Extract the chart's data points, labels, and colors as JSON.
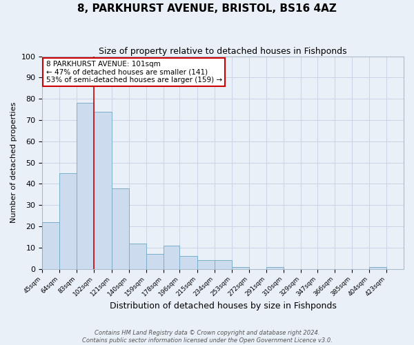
{
  "title": "8, PARKHURST AVENUE, BRISTOL, BS16 4AZ",
  "subtitle": "Size of property relative to detached houses in Fishponds",
  "xlabel": "Distribution of detached houses by size in Fishponds",
  "ylabel": "Number of detached properties",
  "bar_values": [
    22,
    45,
    78,
    74,
    38,
    12,
    7,
    11,
    6,
    4,
    4,
    1,
    0,
    1,
    0,
    0,
    0,
    0,
    0,
    1
  ],
  "bin_labels": [
    "45sqm",
    "64sqm",
    "83sqm",
    "102sqm",
    "121sqm",
    "140sqm",
    "159sqm",
    "178sqm",
    "196sqm",
    "215sqm",
    "234sqm",
    "253sqm",
    "272sqm",
    "291sqm",
    "310sqm",
    "329sqm",
    "347sqm",
    "366sqm",
    "385sqm",
    "404sqm",
    "423sqm"
  ],
  "bar_color": "#ccdcee",
  "bar_edge_color": "#7aaec8",
  "grid_color": "#c8d4e4",
  "background_color": "#eaf0f8",
  "vline_color": "#cc0000",
  "annotation_title": "8 PARKHURST AVENUE: 101sqm",
  "annotation_line1": "← 47% of detached houses are smaller (141)",
  "annotation_line2": "53% of semi-detached houses are larger (159) →",
  "annotation_box_color": "#cc0000",
  "ylim": [
    0,
    100
  ],
  "yticks": [
    0,
    10,
    20,
    30,
    40,
    50,
    60,
    70,
    80,
    90,
    100
  ],
  "footer_line1": "Contains HM Land Registry data © Crown copyright and database right 2024.",
  "footer_line2": "Contains public sector information licensed under the Open Government Licence v3.0.",
  "bin_edges": [
    45,
    64,
    83,
    102,
    121,
    140,
    159,
    178,
    196,
    215,
    234,
    253,
    272,
    291,
    310,
    329,
    347,
    366,
    385,
    404,
    423
  ],
  "vline_pos": 102
}
